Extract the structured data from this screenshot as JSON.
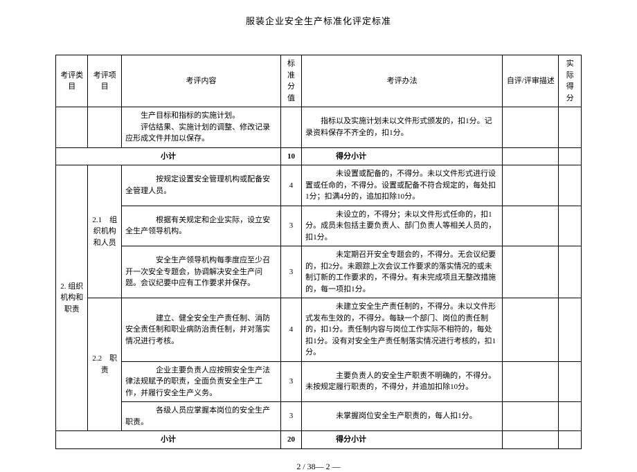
{
  "doc_title": "服装企业安全生产标准化评定标准",
  "header": {
    "category": "考评类目",
    "item": "考评项目",
    "content": "考评内容",
    "score": "标准分值",
    "method": "考评办法",
    "desc": "自评/评审描述",
    "actual": "实际得分"
  },
  "row_continue": {
    "content": "生产目标和指标的实施计划。\n　　评估结果、实施计划的调整、修改记录应形成文件并加以保存。",
    "method": "指标以及实施计划未以文件形式颁发的，扣1分。记录资料保存不齐全的，扣1分。"
  },
  "subtotal1": {
    "label": "小计",
    "score": "10",
    "method": "得分小计"
  },
  "section2": {
    "category": "2. 组织机构和职责",
    "item1": "2.1　组织机构和人员",
    "item2": "2.2　职责",
    "rows": [
      {
        "content": "　　按规定设置安全管理机构或配备安全管理人员。",
        "score": "4",
        "method": "　　未设置或配备的，不得分。未以文件形式进行设置或任命的，不得分。设置或配备不符合规定的，每处扣1分；扣满4分的，追加扣除10分。"
      },
      {
        "content": "　　根据有关规定和企业实际，设立安全生产领导机构。",
        "score": "3",
        "method": "　　未设立的，不得分；未以文件形式任命的，扣1分。成员未包括主要负责人、部门负责人等相关人员的，扣1分。"
      },
      {
        "content": "　　安全生产领导机构每季度应至少召开一次安全专题会，协调解决安全生产问题。会议纪要中应有工作要求并保存。",
        "score": "3",
        "method": "　　未定期召开安全专题会的，不得分。无会议纪要的，扣2分。未跟踪上次会议工作要求的落实情况的或未制订新的工作要求的，不得分。有未完成项且无整改措施的，每一项扣1分。"
      },
      {
        "content": "　　建立、健全安全生产责任制、消防安全责任制和职业病防治责任制，并对落实情况进行考核。",
        "score": "4",
        "method": "　　未建立安全生产责任制的，不得分。未以文件形式发布生效的，不得分。每缺一个部门、岗位的责任制的，扣1分。责任制内容与岗位工作实际不相符的，每处扣1分。没有对安全生产责任制落实情况进行考核的，扣1分。"
      },
      {
        "content": "　　企业主要负责人应按照安全生产法律法规赋予的职责，全面负责安全生产工作，并履行安全生产义务。",
        "score": "3",
        "method": "　　主要负责人的安全生产职责不明确的，不得分。未按规定履行职责的，不得分，并追加扣除10分。"
      },
      {
        "content": "　　各级人员应掌握本岗位的安全生产职责。",
        "score": "3",
        "method": "　　未掌握岗位安全生产职责的，每人扣1分。"
      }
    ]
  },
  "subtotal2": {
    "label": "小计",
    "score": "20",
    "method": "得分小计"
  },
  "footer": "2 / 38— 2 —"
}
